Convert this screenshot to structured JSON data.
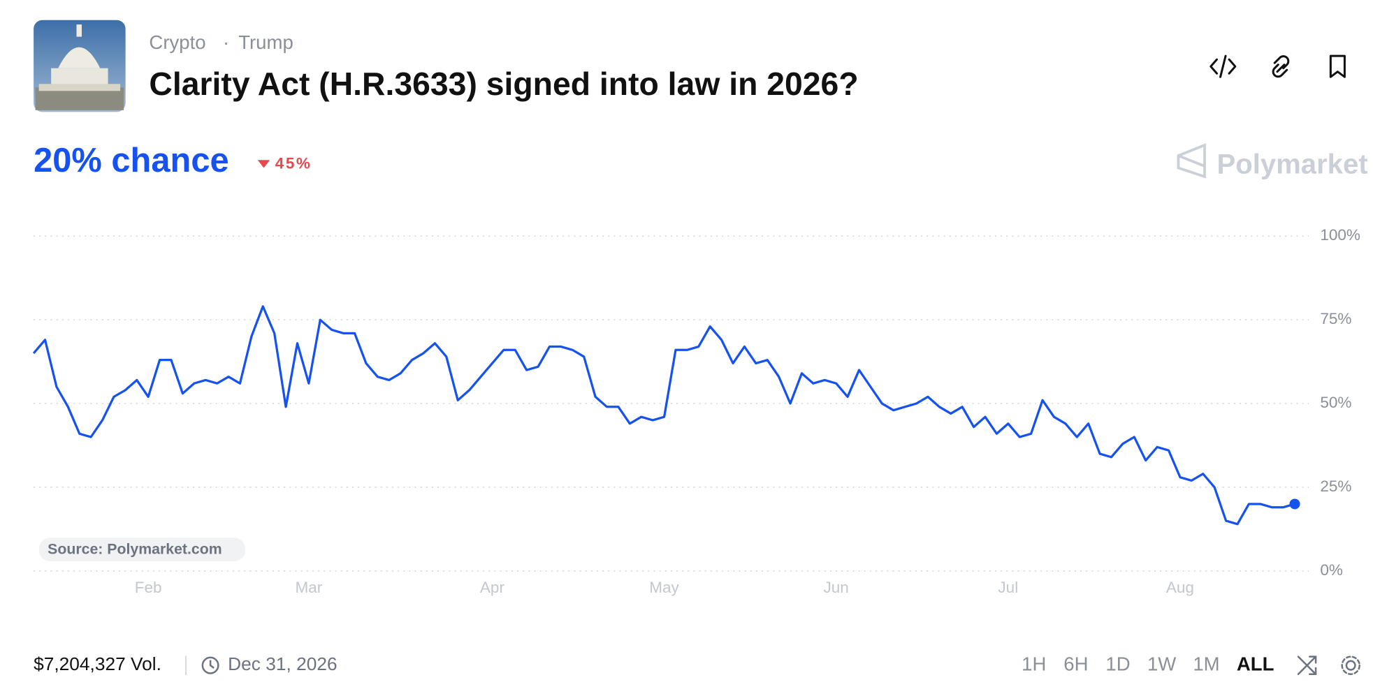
{
  "header": {
    "category": "Crypto",
    "tag": "Trump",
    "title": "Clarity Act (H.R.3633) signed into law in 2026?",
    "chance": "20% chance",
    "change": "45%",
    "brand": "Polymarket"
  },
  "chart_data": {
    "type": "line",
    "color": "#1652f0",
    "categories": [
      null,
      null,
      null,
      null,
      null,
      null,
      null,
      null,
      null,
      null,
      "Feb",
      null,
      null,
      null,
      null,
      null,
      null,
      null,
      null,
      null,
      null,
      null,
      null,
      null,
      "Mar",
      null,
      null,
      null,
      null,
      null,
      null,
      null,
      null,
      null,
      null,
      null,
      null,
      null,
      null,
      null,
      "Apr",
      null,
      null,
      null,
      null,
      null,
      null,
      null,
      null,
      null,
      null,
      null,
      null,
      null,
      null,
      "May",
      null,
      null,
      null,
      null,
      null,
      null,
      null,
      null,
      null,
      null,
      null,
      null,
      null,
      null,
      "Jun",
      null,
      null,
      null,
      null,
      null,
      null,
      null,
      null,
      null,
      null,
      null,
      null,
      null,
      null,
      "Jul",
      null,
      null,
      null,
      null,
      null,
      null,
      null,
      null,
      null,
      null,
      null,
      null,
      null,
      null,
      "Aug",
      null,
      null,
      null,
      null,
      null,
      null,
      null,
      null,
      null,
      null
    ],
    "values": [
      65,
      69,
      55,
      49,
      41,
      40,
      45,
      52,
      54,
      57,
      52,
      63,
      63,
      53,
      56,
      57,
      56,
      58,
      56,
      70,
      79,
      71,
      49,
      68,
      56,
      75,
      72,
      71,
      71,
      62,
      58,
      57,
      59,
      63,
      65,
      68,
      64,
      51,
      54,
      58,
      62,
      66,
      66,
      60,
      61,
      67,
      67,
      66,
      64,
      52,
      49,
      49,
      44,
      46,
      45,
      46,
      66,
      66,
      67,
      73,
      69,
      62,
      67,
      62,
      63,
      58,
      50,
      59,
      56,
      57,
      56,
      52,
      60,
      55,
      50,
      48,
      49,
      50,
      52,
      49,
      47,
      49,
      43,
      46,
      41,
      44,
      40,
      41,
      51,
      46,
      44,
      40,
      44,
      35,
      34,
      38,
      40,
      33,
      37,
      36,
      28,
      27,
      29,
      25,
      15,
      14,
      20,
      20,
      19,
      19,
      20
    ],
    "ylim": [
      0,
      100
    ],
    "yticks": [
      {
        "value": 0,
        "label": "0%"
      },
      {
        "value": 25,
        "label": "25%"
      },
      {
        "value": 50,
        "label": "50%"
      },
      {
        "value": 75,
        "label": "75%"
      },
      {
        "value": 100,
        "label": "100%"
      }
    ],
    "grid": true,
    "source": "Source: Polymarket.com"
  },
  "footer": {
    "volume": "$7,204,327 Vol.",
    "end_date": "Dec 31, 2026",
    "ranges": [
      "1H",
      "6H",
      "1D",
      "1W",
      "1M",
      "ALL"
    ]
  }
}
